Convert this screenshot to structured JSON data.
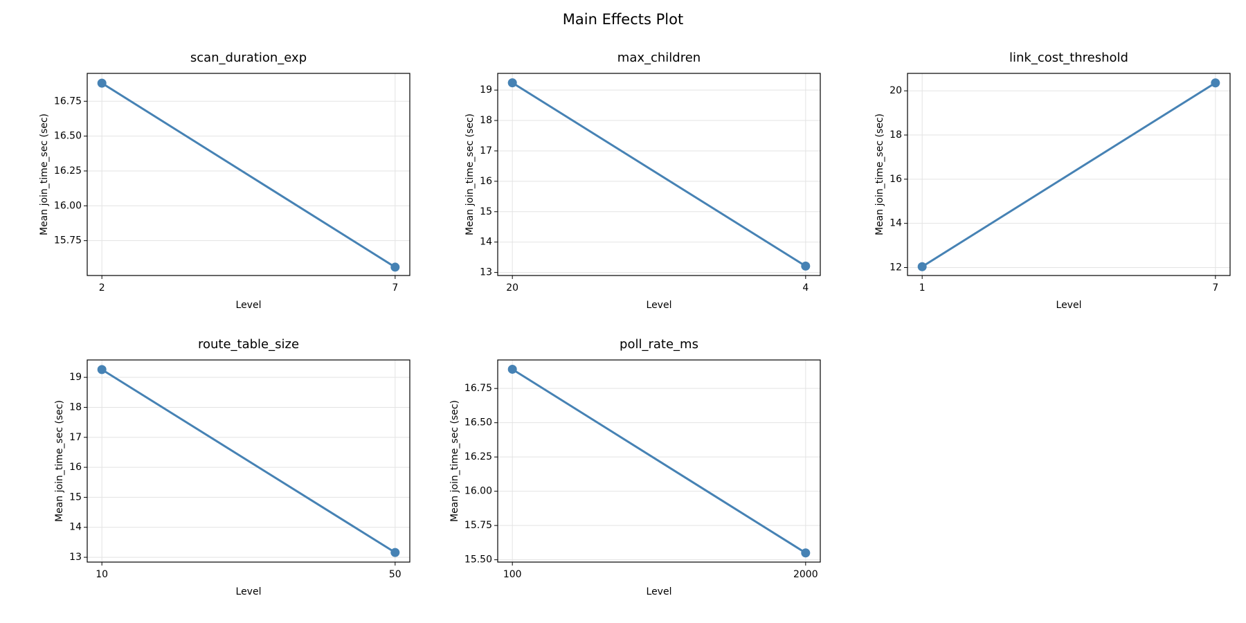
{
  "title": "Main Effects Plot",
  "chart_data": [
    {
      "type": "line",
      "title": "scan_duration_exp",
      "x_label": "Level",
      "y_label": "Mean join_time_sec (sec)",
      "categories": [
        "2",
        "7"
      ],
      "values": [
        16.88,
        15.56
      ],
      "color": "#4682b4",
      "ylim": [
        15.5,
        16.95
      ],
      "yticks": [
        15.75,
        {
          "value": 16.0,
          "label": "16.00"
        },
        16.25,
        {
          "value": 16.5,
          "label": "16.50"
        },
        16.75
      ],
      "grid": true
    },
    {
      "type": "line",
      "title": "max_children",
      "x_label": "Level",
      "y_label": "Mean join_time_sec (sec)",
      "categories": [
        "20",
        "4"
      ],
      "values": [
        19.24,
        13.21
      ],
      "color": "#4682b4",
      "ylim": [
        12.9,
        19.55
      ],
      "yticks": [
        13,
        14,
        15,
        16,
        17,
        18,
        19
      ],
      "grid": true
    },
    {
      "type": "line",
      "title": "link_cost_threshold",
      "x_label": "Level",
      "y_label": "Mean join_time_sec (sec)",
      "categories": [
        "1",
        "7"
      ],
      "values": [
        12.04,
        20.36
      ],
      "color": "#4682b4",
      "ylim": [
        11.64,
        20.79
      ],
      "yticks": [
        12,
        14,
        16,
        18,
        20
      ],
      "grid": true
    },
    {
      "type": "line",
      "title": "route_table_size",
      "x_label": "Level",
      "y_label": "Mean join_time_sec (sec)",
      "categories": [
        "10",
        "50"
      ],
      "values": [
        19.26,
        13.16
      ],
      "color": "#4682b4",
      "ylim": [
        12.84,
        19.58
      ],
      "yticks": [
        13,
        14,
        15,
        16,
        17,
        18,
        19
      ],
      "grid": true
    },
    {
      "type": "line",
      "title": "poll_rate_ms",
      "x_label": "Level",
      "y_label": "Mean join_time_sec (sec)",
      "categories": [
        "100",
        "2000"
      ],
      "values": [
        16.89,
        15.55
      ],
      "color": "#4682b4",
      "ylim": [
        15.483,
        16.958
      ],
      "yticks": [
        {
          "value": 15.5,
          "label": "15.50"
        },
        15.75,
        {
          "value": 16.0,
          "label": "16.00"
        },
        16.25,
        {
          "value": 16.5,
          "label": "16.50"
        },
        16.75
      ],
      "grid": true
    }
  ]
}
